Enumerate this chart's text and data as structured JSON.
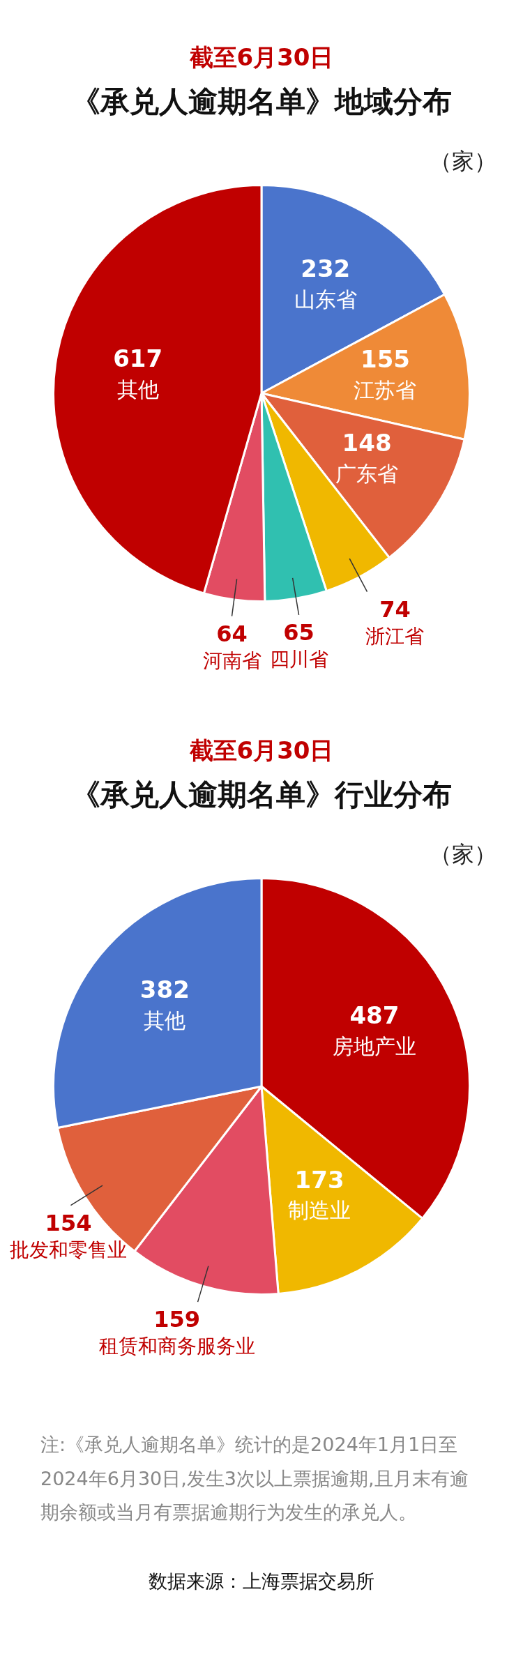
{
  "chart_data": [
    {
      "type": "pie",
      "subtitle": "截至6月30日",
      "title": "《承兑人逾期名单》地域分布",
      "data_labels": true,
      "legend": false,
      "categories": [
        "山东省",
        "江苏省",
        "广东省",
        "浙江省",
        "四川省",
        "河南省",
        "其他"
      ],
      "values": [
        232,
        155,
        148,
        74,
        65,
        64,
        617
      ],
      "colors": [
        "#4a74cc",
        "#ef8a37",
        "#e0603c",
        "#f0b800",
        "#30c0b0",
        "#e24c62",
        "#c00000"
      ],
      "annotations": [
        "（家）"
      ]
    },
    {
      "type": "pie",
      "subtitle": "截至6月30日",
      "title": "《承兑人逾期名单》行业分布",
      "data_labels": true,
      "legend": false,
      "categories": [
        "房地产业",
        "制造业",
        "租赁和商务服务业",
        "批发和零售业",
        "其他"
      ],
      "values": [
        487,
        173,
        159,
        154,
        382
      ],
      "colors": [
        "#c00000",
        "#f0b800",
        "#e24c62",
        "#e0603c",
        "#4a74cc"
      ],
      "annotations": [
        "（家）",
        "注:《承兑人逾期名单》统计的是2024年1月1日至2024年6月30日,发生3次以上票据逾期,且月末有逾期余额或当月有票据逾期行为发生的承兑人。",
        "数据来源：上海票据交易所"
      ]
    }
  ]
}
